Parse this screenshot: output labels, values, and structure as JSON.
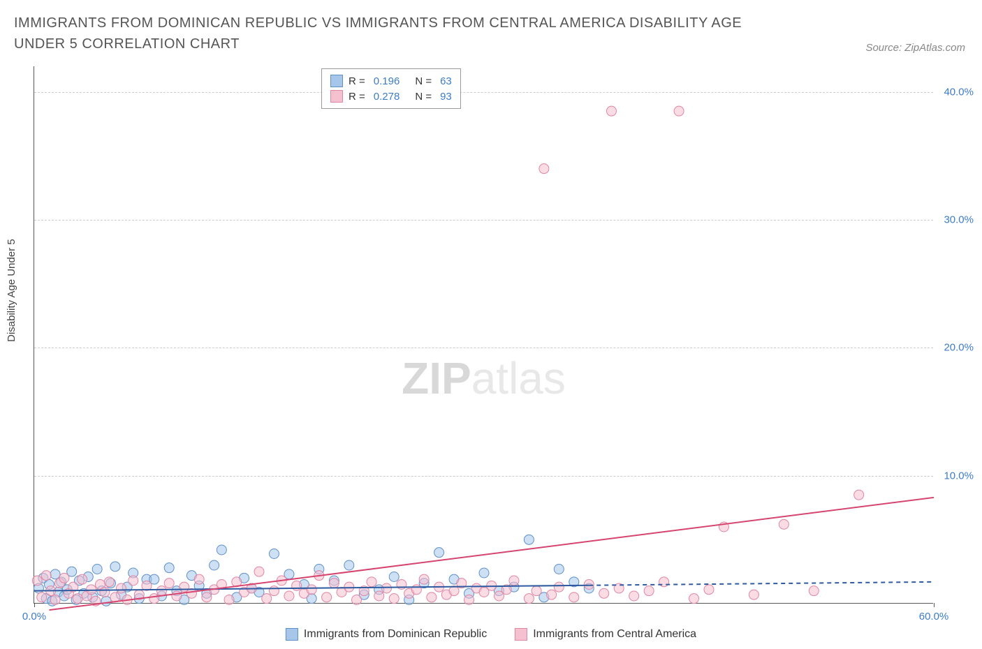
{
  "title": "IMMIGRANTS FROM DOMINICAN REPUBLIC VS IMMIGRANTS FROM CENTRAL AMERICA DISABILITY AGE UNDER 5 CORRELATION CHART",
  "source_label": "Source: ZipAtlas.com",
  "y_axis_label": "Disability Age Under 5",
  "watermark_bold": "ZIP",
  "watermark_light": "atlas",
  "chart": {
    "type": "scatter",
    "background_color": "#ffffff",
    "grid_color": "#cccccc",
    "axis_color": "#555555",
    "tick_label_color": "#3d7cc9",
    "xlim": [
      0,
      60
    ],
    "ylim": [
      0,
      42
    ],
    "x_ticks": [
      0,
      60
    ],
    "x_tick_labels": [
      "0.0%",
      "60.0%"
    ],
    "y_ticks": [
      10,
      20,
      30,
      40
    ],
    "y_tick_labels": [
      "10.0%",
      "20.0%",
      "30.0%",
      "40.0%"
    ],
    "marker_radius": 7,
    "marker_opacity": 0.55,
    "line_width": 2,
    "series": [
      {
        "name": "Immigrants from Dominican Republic",
        "label": "Immigrants from Dominican Republic",
        "fill_color": "#a6c6ea",
        "stroke_color": "#5f8fc9",
        "line_color": "#2e5aa0",
        "R": "0.196",
        "N": "63",
        "trend": {
          "x1": 0,
          "y1": 1.0,
          "x2": 60,
          "y2": 1.7,
          "dashed": true,
          "dash_from_x": 37
        },
        "points": [
          [
            0.3,
            1.2
          ],
          [
            0.6,
            2.0
          ],
          [
            0.8,
            0.4
          ],
          [
            1.0,
            1.5
          ],
          [
            1.2,
            0.2
          ],
          [
            1.4,
            2.3
          ],
          [
            1.6,
            0.9
          ],
          [
            1.8,
            1.7
          ],
          [
            2.0,
            0.6
          ],
          [
            2.2,
            1.1
          ],
          [
            2.5,
            2.5
          ],
          [
            2.8,
            0.3
          ],
          [
            3.0,
            1.8
          ],
          [
            3.3,
            0.8
          ],
          [
            3.6,
            2.1
          ],
          [
            3.9,
            0.5
          ],
          [
            4.2,
            2.7
          ],
          [
            4.5,
            1.0
          ],
          [
            4.8,
            0.2
          ],
          [
            5.1,
            1.6
          ],
          [
            5.4,
            2.9
          ],
          [
            5.8,
            0.7
          ],
          [
            6.2,
            1.3
          ],
          [
            6.6,
            2.4
          ],
          [
            7.0,
            0.4
          ],
          [
            7.5,
            1.9
          ],
          [
            8.0,
            1.9
          ],
          [
            8.5,
            0.6
          ],
          [
            9.0,
            2.8
          ],
          [
            9.5,
            1.0
          ],
          [
            10.0,
            0.3
          ],
          [
            10.5,
            2.2
          ],
          [
            11.0,
            1.4
          ],
          [
            11.5,
            0.8
          ],
          [
            12.0,
            3.0
          ],
          [
            12.5,
            4.2
          ],
          [
            13.5,
            0.5
          ],
          [
            14.0,
            2.0
          ],
          [
            14.5,
            1.2
          ],
          [
            15.0,
            0.9
          ],
          [
            16.0,
            3.9
          ],
          [
            17.0,
            2.3
          ],
          [
            18.0,
            1.5
          ],
          [
            18.5,
            0.4
          ],
          [
            19.0,
            2.7
          ],
          [
            20.0,
            1.8
          ],
          [
            21.0,
            3.0
          ],
          [
            22.0,
            0.7
          ],
          [
            23.0,
            1.1
          ],
          [
            24.0,
            2.1
          ],
          [
            25.0,
            0.3
          ],
          [
            26.0,
            1.6
          ],
          [
            27.0,
            4.0
          ],
          [
            28.0,
            1.9
          ],
          [
            29.0,
            0.8
          ],
          [
            30.0,
            2.4
          ],
          [
            31.0,
            1.0
          ],
          [
            32.0,
            1.3
          ],
          [
            33.0,
            5.0
          ],
          [
            34.0,
            0.5
          ],
          [
            35.0,
            2.7
          ],
          [
            36.0,
            1.7
          ],
          [
            37.0,
            1.2
          ]
        ]
      },
      {
        "name": "Immigrants from Central America",
        "label": "Immigrants from Central America",
        "fill_color": "#f5c0cf",
        "stroke_color": "#e186a3",
        "line_color": "#d6456f",
        "R": "0.278",
        "N": "93",
        "trend": {
          "x1": 1,
          "y1": -0.5,
          "x2": 60,
          "y2": 8.3,
          "dashed": false
        },
        "points": [
          [
            0.2,
            1.8
          ],
          [
            0.5,
            0.5
          ],
          [
            0.8,
            2.2
          ],
          [
            1.1,
            1.0
          ],
          [
            1.4,
            0.3
          ],
          [
            1.7,
            1.6
          ],
          [
            2.0,
            2.0
          ],
          [
            2.3,
            0.8
          ],
          [
            2.6,
            1.3
          ],
          [
            2.9,
            0.4
          ],
          [
            3.2,
            1.9
          ],
          [
            3.5,
            0.6
          ],
          [
            3.8,
            1.1
          ],
          [
            4.1,
            0.2
          ],
          [
            4.4,
            1.5
          ],
          [
            4.7,
            0.9
          ],
          [
            5.0,
            1.7
          ],
          [
            5.4,
            0.5
          ],
          [
            5.8,
            1.2
          ],
          [
            6.2,
            0.3
          ],
          [
            6.6,
            1.8
          ],
          [
            7.0,
            0.7
          ],
          [
            7.5,
            1.4
          ],
          [
            8.0,
            0.4
          ],
          [
            8.5,
            1.0
          ],
          [
            9.0,
            1.6
          ],
          [
            9.5,
            0.6
          ],
          [
            10.0,
            1.3
          ],
          [
            10.5,
            0.8
          ],
          [
            11.0,
            1.9
          ],
          [
            11.5,
            0.5
          ],
          [
            12.0,
            1.1
          ],
          [
            12.5,
            1.5
          ],
          [
            13.0,
            0.3
          ],
          [
            13.5,
            1.7
          ],
          [
            14.0,
            0.9
          ],
          [
            14.5,
            1.2
          ],
          [
            15.0,
            2.5
          ],
          [
            15.5,
            0.4
          ],
          [
            16.0,
            1.0
          ],
          [
            16.5,
            1.8
          ],
          [
            17.0,
            0.6
          ],
          [
            17.5,
            1.4
          ],
          [
            18.0,
            0.8
          ],
          [
            18.5,
            1.1
          ],
          [
            19.0,
            2.2
          ],
          [
            19.5,
            0.5
          ],
          [
            20.0,
            1.6
          ],
          [
            20.5,
            0.9
          ],
          [
            21.0,
            1.3
          ],
          [
            21.5,
            0.3
          ],
          [
            22.0,
            1.0
          ],
          [
            22.5,
            1.7
          ],
          [
            23.0,
            0.6
          ],
          [
            23.5,
            1.2
          ],
          [
            24.0,
            0.4
          ],
          [
            24.5,
            1.5
          ],
          [
            25.0,
            0.8
          ],
          [
            25.5,
            1.1
          ],
          [
            26.0,
            1.9
          ],
          [
            26.5,
            0.5
          ],
          [
            27.0,
            1.3
          ],
          [
            27.5,
            0.7
          ],
          [
            28.0,
            1.0
          ],
          [
            28.5,
            1.6
          ],
          [
            29.0,
            0.3
          ],
          [
            29.5,
            1.2
          ],
          [
            30.0,
            0.9
          ],
          [
            30.5,
            1.4
          ],
          [
            31.0,
            0.6
          ],
          [
            31.5,
            1.1
          ],
          [
            32.0,
            1.8
          ],
          [
            33.0,
            0.4
          ],
          [
            33.5,
            1.0
          ],
          [
            34.0,
            34.0
          ],
          [
            34.5,
            0.7
          ],
          [
            35.0,
            1.3
          ],
          [
            36.0,
            0.5
          ],
          [
            37.0,
            1.5
          ],
          [
            38.0,
            0.8
          ],
          [
            38.5,
            38.5
          ],
          [
            39.0,
            1.2
          ],
          [
            40.0,
            0.6
          ],
          [
            41.0,
            1.0
          ],
          [
            42.0,
            1.7
          ],
          [
            43.0,
            38.5
          ],
          [
            44.0,
            0.4
          ],
          [
            45.0,
            1.1
          ],
          [
            46.0,
            6.0
          ],
          [
            48.0,
            0.7
          ],
          [
            50.0,
            6.2
          ],
          [
            52.0,
            1.0
          ],
          [
            55.0,
            8.5
          ]
        ]
      }
    ]
  },
  "legend_top": {
    "r_label": "R =",
    "n_label": "N ="
  }
}
